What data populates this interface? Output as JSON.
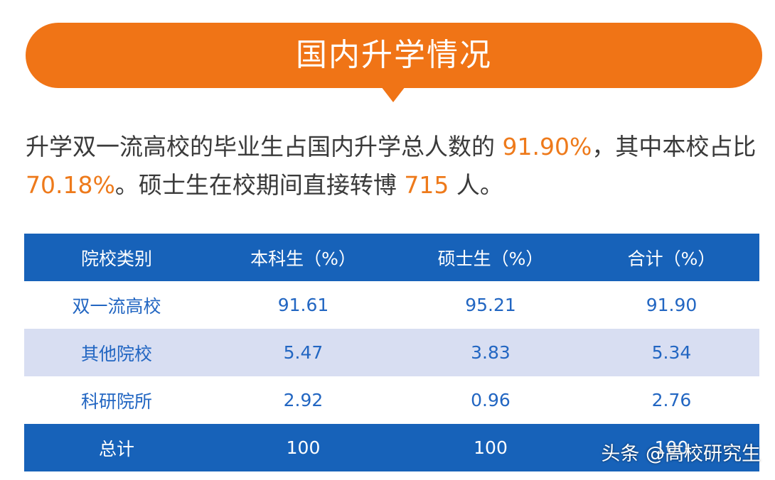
{
  "banner": {
    "title": "国内升学情况"
  },
  "summary": {
    "part1": "升学双一流高校的毕业生占国内升学总人数的 ",
    "value1": "91.90%",
    "part2": "，其中本校占比 ",
    "value2": "70.18%",
    "part3": "。硕士生在校期间直接转博 ",
    "value3": "715",
    "part4": " 人。"
  },
  "table": {
    "headers": [
      "院校类别",
      "本科生（%）",
      "硕士生（%）",
      "合计（%）"
    ],
    "rows": [
      [
        "双一流高校",
        "91.61",
        "95.21",
        "91.90"
      ],
      [
        "其他院校",
        "5.47",
        "3.83",
        "5.34"
      ],
      [
        "科研院所",
        "2.92",
        "0.96",
        "2.76"
      ]
    ],
    "total": [
      "总计",
      "100",
      "100",
      "100"
    ]
  },
  "watermark": "头条 @高校研究生",
  "colors": {
    "accent_orange": "#f07416",
    "table_blue": "#1762b9",
    "row_alt": "#d8def2",
    "cell_text": "#2266c2"
  }
}
